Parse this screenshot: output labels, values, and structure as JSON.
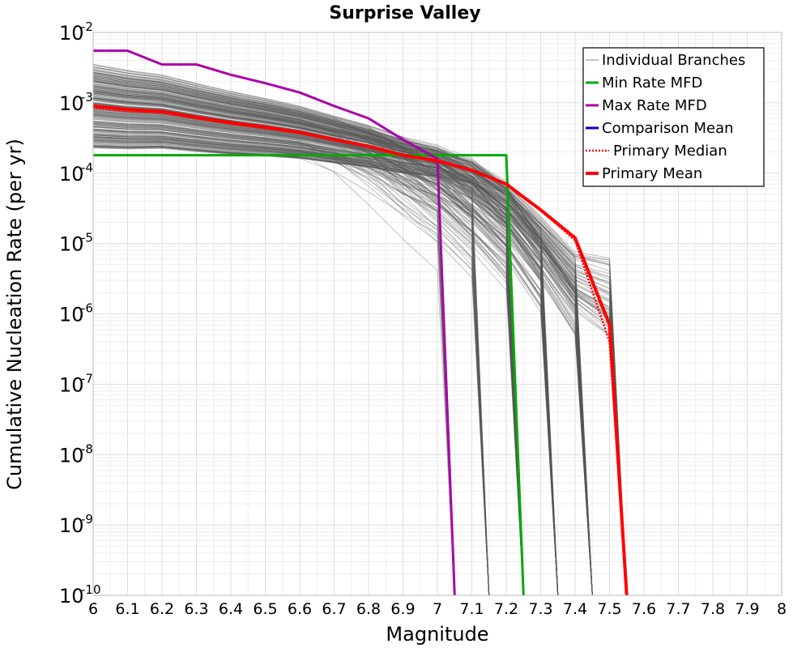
{
  "chart_data": {
    "type": "line",
    "title": "Surprise Valley",
    "xlabel": "Magnitude",
    "ylabel": "Cumulative Nucleation Rate (per yr)",
    "xlim": [
      6,
      8
    ],
    "ylim": [
      1e-10,
      0.01
    ],
    "yscale": "log",
    "grid": true,
    "legend_position": "top-right",
    "x_ticks": [
      "6",
      "6.1",
      "6.2",
      "6.3",
      "6.4",
      "6.5",
      "6.6",
      "6.7",
      "6.8",
      "6.9",
      "7",
      "7.1",
      "7.2",
      "7.3",
      "7.4",
      "7.5",
      "7.6",
      "7.7",
      "7.8",
      "7.9",
      "8"
    ],
    "y_ticks": [
      {
        "base": "10",
        "exp": "-2"
      },
      {
        "base": "10",
        "exp": "-3"
      },
      {
        "base": "10",
        "exp": "-4"
      },
      {
        "base": "10",
        "exp": "-5"
      },
      {
        "base": "10",
        "exp": "-6"
      },
      {
        "base": "10",
        "exp": "-7"
      },
      {
        "base": "10",
        "exp": "-8"
      },
      {
        "base": "10",
        "exp": "-9"
      },
      {
        "base": "10",
        "exp": "-10"
      }
    ],
    "series": [
      {
        "name": "Min Rate MFD",
        "color": "#00aa00",
        "x": [
          6.0,
          6.5,
          7.0,
          7.2,
          7.25
        ],
        "y": [
          0.00018,
          0.00018,
          0.00018,
          0.00018,
          1e-10
        ]
      },
      {
        "name": "Max Rate MFD",
        "color": "#aa00aa",
        "x": [
          6.0,
          6.1,
          6.2,
          6.3,
          6.4,
          6.5,
          6.6,
          6.7,
          6.8,
          6.9,
          7.0,
          7.05
        ],
        "y": [
          0.0055,
          0.0055,
          0.0035,
          0.0035,
          0.0025,
          0.0019,
          0.0014,
          0.0009,
          0.0006,
          0.0003,
          0.00016,
          1e-10
        ]
      },
      {
        "name": "Comparison Mean",
        "color": "#0000cc",
        "x": [],
        "y": []
      },
      {
        "name": "Primary Median",
        "color": "#ff0000",
        "x": [
          6.0,
          6.1,
          6.2,
          6.3,
          6.4,
          6.5,
          6.6,
          6.7,
          6.8,
          6.9,
          7.0,
          7.1,
          7.2,
          7.3,
          7.4,
          7.5,
          7.55
        ],
        "y": [
          0.00085,
          0.00075,
          0.00072,
          0.0006,
          0.0005,
          0.00043,
          0.00037,
          0.0003,
          0.00024,
          0.00018,
          0.000145,
          0.00011,
          7e-05,
          3e-05,
          1.1e-05,
          4e-07,
          1e-10
        ]
      },
      {
        "name": "Primary Mean",
        "color": "#ff0000",
        "x": [
          6.0,
          6.1,
          6.2,
          6.3,
          6.4,
          6.5,
          6.6,
          6.7,
          6.8,
          6.9,
          7.0,
          7.1,
          7.2,
          7.3,
          7.4,
          7.5,
          7.55
        ],
        "y": [
          0.0009,
          0.0008,
          0.00075,
          0.00062,
          0.00052,
          0.00045,
          0.00038,
          0.0003,
          0.00024,
          0.00018,
          0.00015,
          0.00011,
          7e-05,
          3e-05,
          1.2e-05,
          7e-07,
          1e-10
        ]
      }
    ],
    "individual_branches": {
      "name": "Individual Branches",
      "color": "#555555"
    }
  }
}
